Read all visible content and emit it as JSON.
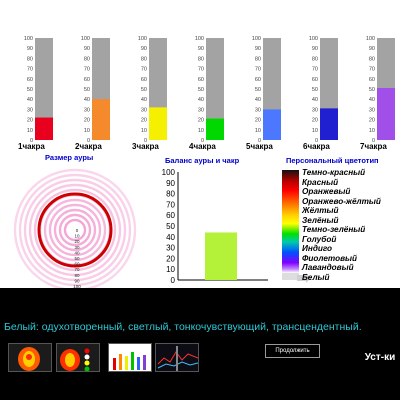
{
  "chart_data": [
    {
      "type": "bar",
      "categories": [
        "1чакра",
        "2чакра",
        "3чакра",
        "4чакра",
        "5чакра",
        "6чакра",
        "7чакра"
      ],
      "values": [
        22,
        40,
        32,
        21,
        30,
        31,
        51
      ],
      "colors": [
        "#e8001e",
        "#f58a2c",
        "#f5f000",
        "#00d800",
        "#4c78ff",
        "#2020d0",
        "#a050e8"
      ],
      "yticks": [
        0,
        10,
        20,
        30,
        40,
        50,
        60,
        70,
        80,
        90,
        100
      ],
      "ylim": [
        0,
        100
      ],
      "grid": false
    },
    {
      "type": "bar",
      "title": "Баланс ауры и чакр",
      "categories": [
        ""
      ],
      "values": [
        44
      ],
      "colors": [
        "#b4f23a"
      ],
      "yticks": [
        0,
        10,
        20,
        30,
        40,
        50,
        60,
        70,
        80,
        90,
        100
      ],
      "ylim": [
        0,
        100
      ]
    }
  ],
  "aura": {
    "title": "Размер ауры",
    "scale": [
      "0",
      "10",
      "20",
      "30",
      "40",
      "50",
      "60",
      "70",
      "80",
      "90",
      "100"
    ],
    "ring_color": "#cc0000",
    "halo_color": "#f08ac8"
  },
  "colortype": {
    "title": "Персональный цветотип",
    "items": [
      "Темно-красный",
      "Красный",
      "Оранжевый",
      "Оранжево-жёлтый",
      "Жёлтый",
      "Зелёный",
      "Темно-зелёный",
      "Голубой",
      "Индиго",
      "Фиолетовый",
      "Лавандовый",
      "Белый"
    ]
  },
  "description": "Белый: одухотворенный, светлый, тонкочувствующий, трансцендентный.",
  "buttons": {
    "next": "Продолжить",
    "settings": "Уст-ки"
  },
  "thumbnails": [
    "aura-thumb-icon",
    "aura-chakra-thumb-icon",
    "chakra-bars-thumb-icon",
    "graph-thumb-icon"
  ]
}
